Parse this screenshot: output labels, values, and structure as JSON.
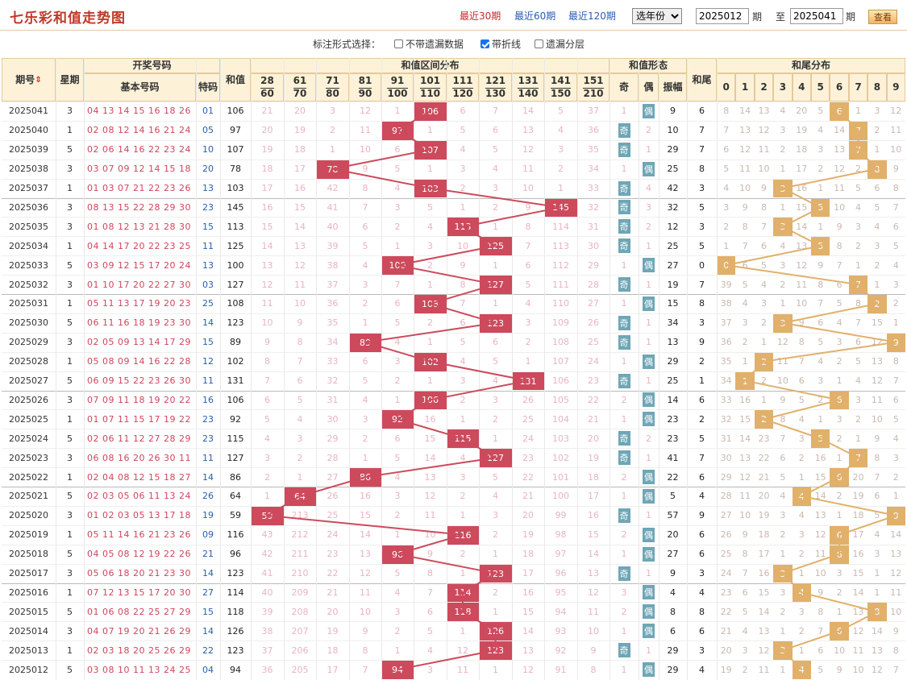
{
  "header": {
    "title": "七乐彩和值走势图",
    "quick_links": [
      "最近30期",
      "最近60期",
      "最近120期"
    ],
    "year_select": "选年份",
    "range_from": "2025012",
    "range_to": "2025041",
    "label_period": "期",
    "label_to": "至",
    "query_button": "查看"
  },
  "options": {
    "label": "标注形式选择：",
    "items": [
      {
        "label": "不带遗漏数据",
        "checked": false
      },
      {
        "label": "带折线",
        "checked": true
      },
      {
        "label": "遗漏分层",
        "checked": false
      }
    ]
  },
  "columns": {
    "period": "期号",
    "sort_icon": "sort-icon",
    "week": "星期",
    "draw_group": "开奖号码",
    "basic": "基本号码",
    "special": "特码",
    "sum": "和值",
    "range_group": "和值区间分布",
    "ranges": [
      [
        "28",
        "60"
      ],
      [
        "61",
        "70"
      ],
      [
        "71",
        "80"
      ],
      [
        "81",
        "90"
      ],
      [
        "91",
        "100"
      ],
      [
        "101",
        "110"
      ],
      [
        "111",
        "120"
      ],
      [
        "121",
        "130"
      ],
      [
        "131",
        "140"
      ],
      [
        "141",
        "150"
      ],
      [
        "151",
        "210"
      ]
    ],
    "form_group": "和值形态",
    "odd": "奇",
    "even": "偶",
    "amplitude": "振幅",
    "tail": "和尾",
    "tail_group": "和尾分布",
    "tails": [
      "0",
      "1",
      "2",
      "3",
      "4",
      "5",
      "6",
      "7",
      "8",
      "9"
    ]
  },
  "colors": {
    "hit": "#cc4a5c",
    "tail_hit": "#e1b06a",
    "oe_badge": "#6fa6b6",
    "header_bg": "#fdf2d8"
  },
  "rows": [
    {
      "period": "2025041",
      "week": "3",
      "nums": "04 13 14 15 16 18 26",
      "spec": "01",
      "sum": "106",
      "ranges": [
        "21",
        "20",
        "3",
        "12",
        "1",
        "106",
        "6",
        "7",
        "14",
        "5",
        "37"
      ],
      "odd": "1",
      "even": "偶",
      "oe": "even",
      "amp": "9",
      "tail": "6",
      "tails": [
        "8",
        "14",
        "13",
        "4",
        "20",
        "5",
        "6",
        "1",
        "3",
        "12"
      ]
    },
    {
      "period": "2025040",
      "week": "1",
      "nums": "02 08 12 14 16 21 24",
      "spec": "05",
      "sum": "97",
      "ranges": [
        "20",
        "19",
        "2",
        "11",
        "97",
        "1",
        "5",
        "6",
        "13",
        "4",
        "36"
      ],
      "odd": "奇",
      "even": "2",
      "oe": "odd",
      "amp": "10",
      "tail": "7",
      "tails": [
        "7",
        "13",
        "12",
        "3",
        "19",
        "4",
        "14",
        "7",
        "2",
        "11"
      ]
    },
    {
      "period": "2025039",
      "week": "5",
      "nums": "02 06 14 16 22 23 24",
      "spec": "10",
      "sum": "107",
      "ranges": [
        "19",
        "18",
        "1",
        "10",
        "6",
        "107",
        "4",
        "5",
        "12",
        "3",
        "35"
      ],
      "odd": "奇",
      "even": "1",
      "oe": "odd",
      "amp": "29",
      "tail": "7",
      "tails": [
        "6",
        "12",
        "11",
        "2",
        "18",
        "3",
        "13",
        "7",
        "1",
        "10"
      ]
    },
    {
      "period": "2025038",
      "week": "3",
      "nums": "03 07 09 12 14 15 18",
      "spec": "20",
      "sum": "78",
      "ranges": [
        "18",
        "17",
        "78",
        "9",
        "5",
        "1",
        "3",
        "4",
        "11",
        "2",
        "34"
      ],
      "odd": "1",
      "even": "偶",
      "oe": "even",
      "amp": "25",
      "tail": "8",
      "tails": [
        "5",
        "11",
        "10",
        "1",
        "17",
        "2",
        "12",
        "2",
        "8",
        "9"
      ]
    },
    {
      "period": "2025037",
      "week": "1",
      "nums": "01 03 07 21 22 23 26",
      "spec": "13",
      "sum": "103",
      "ranges": [
        "17",
        "16",
        "42",
        "8",
        "4",
        "103",
        "2",
        "3",
        "10",
        "1",
        "33"
      ],
      "odd": "奇",
      "even": "4",
      "oe": "odd",
      "amp": "42",
      "tail": "3",
      "tails": [
        "4",
        "10",
        "9",
        "3",
        "16",
        "1",
        "11",
        "5",
        "6",
        "8"
      ]
    },
    {
      "period": "2025036",
      "week": "3",
      "nums": "08 13 15 22 28 29 30",
      "spec": "23",
      "sum": "145",
      "ranges": [
        "16",
        "15",
        "41",
        "7",
        "3",
        "5",
        "1",
        "2",
        "9",
        "145",
        "32"
      ],
      "odd": "奇",
      "even": "3",
      "oe": "odd",
      "amp": "32",
      "tail": "5",
      "tails": [
        "3",
        "9",
        "8",
        "1",
        "15",
        "5",
        "10",
        "4",
        "5",
        "7"
      ]
    },
    {
      "period": "2025035",
      "week": "3",
      "nums": "01 08 12 13 21 28 30",
      "spec": "15",
      "sum": "113",
      "ranges": [
        "15",
        "14",
        "40",
        "6",
        "2",
        "4",
        "113",
        "1",
        "8",
        "114",
        "31"
      ],
      "odd": "奇",
      "even": "2",
      "oe": "odd",
      "amp": "12",
      "tail": "3",
      "tails": [
        "2",
        "8",
        "7",
        "3",
        "14",
        "1",
        "9",
        "3",
        "4",
        "6"
      ]
    },
    {
      "period": "2025034",
      "week": "1",
      "nums": "04 14 17 20 22 23 25",
      "spec": "11",
      "sum": "125",
      "ranges": [
        "14",
        "13",
        "39",
        "5",
        "1",
        "3",
        "10",
        "125",
        "7",
        "113",
        "30"
      ],
      "odd": "奇",
      "even": "1",
      "oe": "odd",
      "amp": "25",
      "tail": "5",
      "tails": [
        "1",
        "7",
        "6",
        "4",
        "13",
        "5",
        "8",
        "2",
        "3",
        "5"
      ]
    },
    {
      "period": "2025033",
      "week": "5",
      "nums": "03 09 12 15 17 20 24",
      "spec": "13",
      "sum": "100",
      "ranges": [
        "13",
        "12",
        "38",
        "4",
        "100",
        "2",
        "9",
        "1",
        "6",
        "112",
        "29"
      ],
      "odd": "1",
      "even": "偶",
      "oe": "even",
      "amp": "27",
      "tail": "0",
      "tails": [
        "0",
        "6",
        "5",
        "3",
        "12",
        "9",
        "7",
        "1",
        "2",
        "4"
      ]
    },
    {
      "period": "2025032",
      "week": "3",
      "nums": "01 10 17 20 22 27 30",
      "spec": "03",
      "sum": "127",
      "ranges": [
        "12",
        "11",
        "37",
        "3",
        "7",
        "1",
        "8",
        "127",
        "5",
        "111",
        "28"
      ],
      "odd": "奇",
      "even": "1",
      "oe": "odd",
      "amp": "19",
      "tail": "7",
      "tails": [
        "39",
        "5",
        "4",
        "2",
        "11",
        "8",
        "6",
        "7",
        "1",
        "3"
      ]
    },
    {
      "period": "2025031",
      "week": "1",
      "nums": "05 11 13 17 19 20 23",
      "spec": "25",
      "sum": "108",
      "ranges": [
        "11",
        "10",
        "36",
        "2",
        "6",
        "108",
        "7",
        "1",
        "4",
        "110",
        "27"
      ],
      "odd": "1",
      "even": "偶",
      "oe": "even",
      "amp": "15",
      "tail": "8",
      "tails": [
        "38",
        "4",
        "3",
        "1",
        "10",
        "7",
        "5",
        "8",
        "2",
        "2"
      ]
    },
    {
      "period": "2025030",
      "week": "5",
      "nums": "06 11 16 18 19 23 30",
      "spec": "14",
      "sum": "123",
      "ranges": [
        "10",
        "9",
        "35",
        "1",
        "5",
        "2",
        "6",
        "123",
        "3",
        "109",
        "26"
      ],
      "odd": "奇",
      "even": "1",
      "oe": "odd",
      "amp": "34",
      "tail": "3",
      "tails": [
        "37",
        "3",
        "2",
        "3",
        "9",
        "6",
        "4",
        "7",
        "15",
        "1"
      ]
    },
    {
      "period": "2025029",
      "week": "3",
      "nums": "02 05 09 13 14 17 29",
      "spec": "15",
      "sum": "89",
      "ranges": [
        "9",
        "8",
        "34",
        "89",
        "4",
        "1",
        "5",
        "6",
        "2",
        "108",
        "25"
      ],
      "odd": "奇",
      "even": "1",
      "oe": "odd",
      "amp": "13",
      "tail": "9",
      "tails": [
        "36",
        "2",
        "1",
        "12",
        "8",
        "5",
        "3",
        "6",
        "12",
        "9"
      ]
    },
    {
      "period": "2025028",
      "week": "1",
      "nums": "05 08 09 14 16 22 28",
      "spec": "12",
      "sum": "102",
      "ranges": [
        "8",
        "7",
        "33",
        "6",
        "3",
        "102",
        "4",
        "5",
        "1",
        "107",
        "24"
      ],
      "odd": "1",
      "even": "偶",
      "oe": "even",
      "amp": "29",
      "tail": "2",
      "tails": [
        "35",
        "1",
        "2",
        "11",
        "7",
        "4",
        "2",
        "5",
        "13",
        "8"
      ]
    },
    {
      "period": "2025027",
      "week": "5",
      "nums": "06 09 15 22 23 26 30",
      "spec": "11",
      "sum": "131",
      "ranges": [
        "7",
        "6",
        "32",
        "5",
        "2",
        "1",
        "3",
        "4",
        "131",
        "106",
        "23"
      ],
      "odd": "奇",
      "even": "1",
      "oe": "odd",
      "amp": "25",
      "tail": "1",
      "tails": [
        "34",
        "1",
        "2",
        "10",
        "6",
        "3",
        "1",
        "4",
        "12",
        "7"
      ]
    },
    {
      "period": "2025026",
      "week": "3",
      "nums": "07 09 11 18 19 20 22",
      "spec": "16",
      "sum": "106",
      "ranges": [
        "6",
        "5",
        "31",
        "4",
        "1",
        "106",
        "2",
        "3",
        "26",
        "105",
        "22"
      ],
      "odd": "2",
      "even": "偶",
      "oe": "even",
      "amp": "14",
      "tail": "6",
      "tails": [
        "33",
        "16",
        "1",
        "9",
        "5",
        "2",
        "6",
        "3",
        "11",
        "6"
      ]
    },
    {
      "period": "2025025",
      "week": "1",
      "nums": "01 07 11 15 17 19 22",
      "spec": "23",
      "sum": "92",
      "ranges": [
        "5",
        "4",
        "30",
        "3",
        "92",
        "16",
        "1",
        "2",
        "25",
        "104",
        "21"
      ],
      "odd": "1",
      "even": "偶",
      "oe": "even",
      "amp": "23",
      "tail": "2",
      "tails": [
        "32",
        "15",
        "2",
        "8",
        "4",
        "1",
        "3",
        "2",
        "10",
        "5"
      ]
    },
    {
      "period": "2025024",
      "week": "5",
      "nums": "02 06 11 12 27 28 29",
      "spec": "23",
      "sum": "115",
      "ranges": [
        "4",
        "3",
        "29",
        "2",
        "6",
        "15",
        "115",
        "1",
        "24",
        "103",
        "20"
      ],
      "odd": "奇",
      "even": "2",
      "oe": "odd",
      "amp": "23",
      "tail": "5",
      "tails": [
        "31",
        "14",
        "23",
        "7",
        "3",
        "5",
        "2",
        "1",
        "9",
        "4"
      ]
    },
    {
      "period": "2025023",
      "week": "3",
      "nums": "06 08 16 20 26 30 11",
      "spec": "11",
      "sum": "127",
      "ranges": [
        "3",
        "2",
        "28",
        "1",
        "5",
        "14",
        "4",
        "127",
        "23",
        "102",
        "19"
      ],
      "odd": "奇",
      "even": "1",
      "oe": "odd",
      "amp": "41",
      "tail": "7",
      "tails": [
        "30",
        "13",
        "22",
        "6",
        "2",
        "16",
        "1",
        "7",
        "8",
        "3"
      ]
    },
    {
      "period": "2025022",
      "week": "1",
      "nums": "02 04 08 12 15 18 27",
      "spec": "14",
      "sum": "86",
      "ranges": [
        "2",
        "1",
        "27",
        "86",
        "4",
        "13",
        "3",
        "5",
        "22",
        "101",
        "18"
      ],
      "odd": "2",
      "even": "偶",
      "oe": "even",
      "amp": "22",
      "tail": "6",
      "tails": [
        "29",
        "12",
        "21",
        "5",
        "1",
        "15",
        "6",
        "20",
        "7",
        "2"
      ]
    },
    {
      "period": "2025021",
      "week": "5",
      "nums": "02 03 05 06 11 13 24",
      "spec": "26",
      "sum": "64",
      "ranges": [
        "1",
        "64",
        "26",
        "16",
        "3",
        "12",
        "2",
        "4",
        "21",
        "100",
        "17"
      ],
      "odd": "1",
      "even": "偶",
      "oe": "even",
      "amp": "5",
      "tail": "4",
      "tails": [
        "28",
        "11",
        "20",
        "4",
        "4",
        "14",
        "2",
        "19",
        "6",
        "1"
      ]
    },
    {
      "period": "2025020",
      "week": "3",
      "nums": "01 02 03 05 13 17 18",
      "spec": "19",
      "sum": "59",
      "ranges": [
        "59",
        "213",
        "25",
        "15",
        "2",
        "11",
        "1",
        "3",
        "20",
        "99",
        "16"
      ],
      "odd": "奇",
      "even": "1",
      "oe": "odd",
      "amp": "57",
      "tail": "9",
      "tails": [
        "27",
        "10",
        "19",
        "3",
        "4",
        "13",
        "1",
        "18",
        "5",
        "9"
      ]
    },
    {
      "period": "2025019",
      "week": "1",
      "nums": "05 11 14 16 21 23 26",
      "spec": "09",
      "sum": "116",
      "ranges": [
        "43",
        "212",
        "24",
        "14",
        "1",
        "10",
        "116",
        "2",
        "19",
        "98",
        "15"
      ],
      "odd": "2",
      "even": "偶",
      "oe": "even",
      "amp": "20",
      "tail": "6",
      "tails": [
        "26",
        "9",
        "18",
        "2",
        "3",
        "12",
        "6",
        "17",
        "4",
        "14"
      ]
    },
    {
      "period": "2025018",
      "week": "5",
      "nums": "04 05 08 12 19 22 26",
      "spec": "21",
      "sum": "96",
      "ranges": [
        "42",
        "211",
        "23",
        "13",
        "96",
        "9",
        "2",
        "1",
        "18",
        "97",
        "14"
      ],
      "odd": "1",
      "even": "偶",
      "oe": "even",
      "amp": "27",
      "tail": "6",
      "tails": [
        "25",
        "8",
        "17",
        "1",
        "2",
        "11",
        "6",
        "16",
        "3",
        "13"
      ]
    },
    {
      "period": "2025017",
      "week": "3",
      "nums": "05 06 18 20 21 23 30",
      "spec": "14",
      "sum": "123",
      "ranges": [
        "41",
        "210",
        "22",
        "12",
        "5",
        "8",
        "1",
        "123",
        "17",
        "96",
        "13"
      ],
      "odd": "奇",
      "even": "1",
      "oe": "odd",
      "amp": "9",
      "tail": "3",
      "tails": [
        "24",
        "7",
        "16",
        "3",
        "1",
        "10",
        "3",
        "15",
        "1",
        "12"
      ]
    },
    {
      "period": "2025016",
      "week": "1",
      "nums": "07 12 13 15 17 20 30",
      "spec": "27",
      "sum": "114",
      "ranges": [
        "40",
        "209",
        "21",
        "11",
        "4",
        "7",
        "114",
        "2",
        "16",
        "95",
        "12"
      ],
      "odd": "3",
      "even": "偶",
      "oe": "even",
      "amp": "4",
      "tail": "4",
      "tails": [
        "23",
        "6",
        "15",
        "3",
        "4",
        "9",
        "2",
        "14",
        "1",
        "11"
      ]
    },
    {
      "period": "2025015",
      "week": "5",
      "nums": "01 06 08 22 25 27 29",
      "spec": "15",
      "sum": "118",
      "ranges": [
        "39",
        "208",
        "20",
        "10",
        "3",
        "6",
        "118",
        "1",
        "15",
        "94",
        "11"
      ],
      "odd": "2",
      "even": "偶",
      "oe": "even",
      "amp": "8",
      "tail": "8",
      "tails": [
        "22",
        "5",
        "14",
        "2",
        "3",
        "8",
        "1",
        "13",
        "8",
        "10"
      ]
    },
    {
      "period": "2025014",
      "week": "3",
      "nums": "04 07 19 20 21 26 29",
      "spec": "14",
      "sum": "126",
      "ranges": [
        "38",
        "207",
        "19",
        "9",
        "2",
        "5",
        "1",
        "126",
        "14",
        "93",
        "10"
      ],
      "odd": "1",
      "even": "偶",
      "oe": "even",
      "amp": "6",
      "tail": "6",
      "tails": [
        "21",
        "4",
        "13",
        "1",
        "2",
        "7",
        "6",
        "12",
        "14",
        "9"
      ]
    },
    {
      "period": "2025013",
      "week": "1",
      "nums": "02 03 18 20 25 26 29",
      "spec": "22",
      "sum": "123",
      "ranges": [
        "37",
        "206",
        "18",
        "8",
        "1",
        "4",
        "12",
        "123",
        "13",
        "92",
        "9"
      ],
      "odd": "奇",
      "even": "1",
      "oe": "odd",
      "amp": "29",
      "tail": "3",
      "tails": [
        "20",
        "3",
        "12",
        "3",
        "1",
        "6",
        "10",
        "11",
        "13",
        "8"
      ]
    },
    {
      "period": "2025012",
      "week": "5",
      "nums": "03 08 10 11 13 24 25",
      "spec": "04",
      "sum": "94",
      "ranges": [
        "36",
        "205",
        "17",
        "7",
        "94",
        "3",
        "11",
        "1",
        "12",
        "91",
        "8"
      ],
      "odd": "1",
      "even": "偶",
      "oe": "even",
      "amp": "29",
      "tail": "4",
      "tails": [
        "19",
        "2",
        "11",
        "1",
        "4",
        "5",
        "9",
        "10",
        "12",
        "7"
      ]
    }
  ]
}
